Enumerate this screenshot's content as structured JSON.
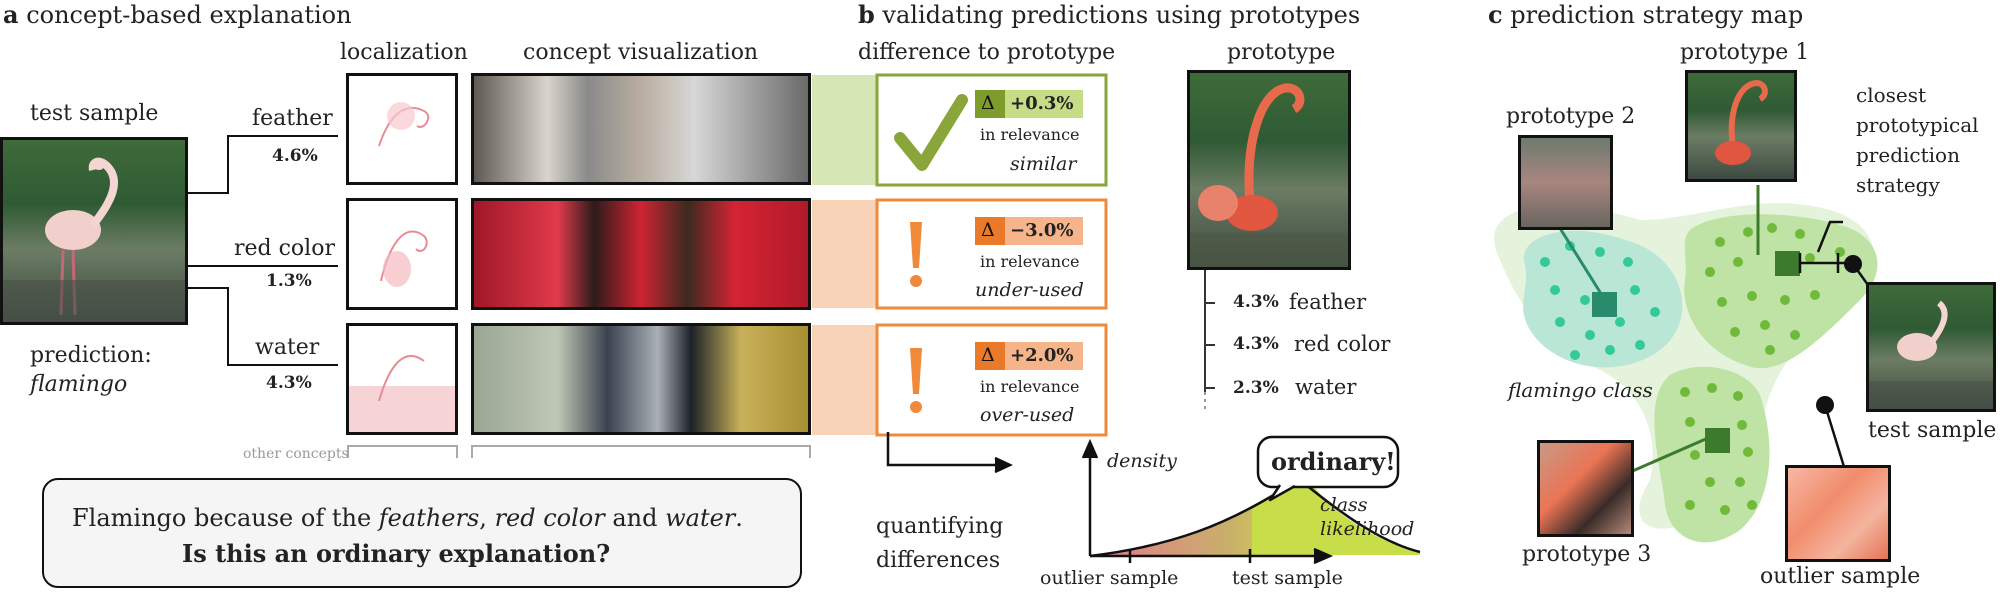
{
  "panel_a": {
    "letter": "a",
    "title": "concept-based explanation",
    "col_localization": "localization",
    "col_visualization": "concept visualization",
    "test_sample_label": "test sample",
    "prediction_label": "prediction:",
    "prediction_value": "flamingo",
    "concepts": [
      {
        "name": "feather",
        "value": "4.6%"
      },
      {
        "name": "red color",
        "value": "1.3%"
      },
      {
        "name": "water",
        "value": "4.3%"
      }
    ],
    "other_concepts": "other concepts",
    "explanation_line1_prefix": "Flamingo because of the ",
    "explanation_feathers": "feathers",
    "explanation_sep1": ", ",
    "explanation_red": "red color",
    "explanation_and": " and ",
    "explanation_water": "water",
    "explanation_end": ".",
    "explanation_question": "Is this an ordinary explanation?"
  },
  "panel_b": {
    "letter": "b",
    "title": "validating predictions using prototypes",
    "col_difference": "difference to prototype",
    "col_prototype": "prototype",
    "delta_symbol": "Δ",
    "relevance_label": "in relevance",
    "rows": [
      {
        "delta": "+0.3%",
        "verdict": "similar",
        "symbol": "✓"
      },
      {
        "delta": "−3.0%",
        "verdict": "under-used",
        "symbol": "!"
      },
      {
        "delta": "+2.0%",
        "verdict": "over-used",
        "symbol": "!"
      }
    ],
    "prototype_concepts": [
      {
        "value": "4.3%",
        "name": "feather"
      },
      {
        "value": "4.3%",
        "name": "red color"
      },
      {
        "value": "2.3%",
        "name": "water"
      }
    ],
    "quantifying_line1": "quantifying",
    "quantifying_line2": "differences",
    "density_label": "density",
    "ordinary_label": "ordinary!",
    "class_likelihood_line1": "class",
    "class_likelihood_line2": "likelihood",
    "outlier_sample": "outlier sample",
    "test_sample": "test sample"
  },
  "panel_c": {
    "letter": "c",
    "title": "prediction strategy map",
    "prototype_1": "prototype 1",
    "prototype_2": "prototype 2",
    "prototype_3": "prototype 3",
    "closest_lines": [
      "closest",
      "prototypical",
      "prediction",
      "strategy"
    ],
    "flamingo_class": "flamingo class",
    "test_sample": "test sample",
    "outlier_sample": "outlier sample"
  },
  "colors": {
    "green": "#8aa53a",
    "green_light": "#d6e6b4",
    "orange": "#f08a3a",
    "orange_light": "#f9c9a6",
    "teal_blob": "#b9e6d5",
    "teal_dot": "#35c99a",
    "green_blob": "#bfe3a4",
    "green_dot": "#6fba3b",
    "proto_square_teal": "#2a8a6c",
    "proto_square_green": "#3c7a2c"
  }
}
